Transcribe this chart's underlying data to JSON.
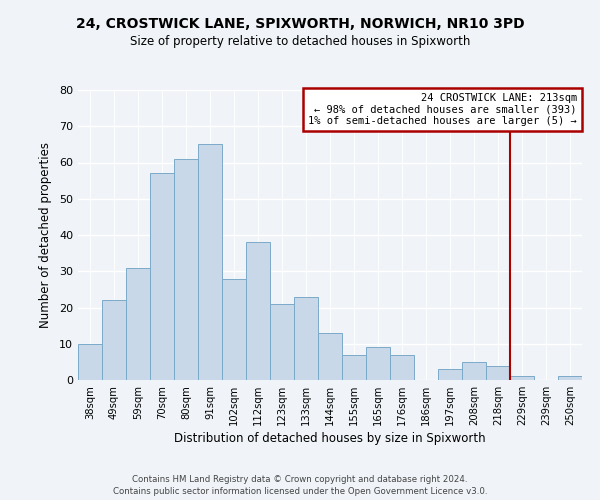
{
  "title": "24, CROSTWICK LANE, SPIXWORTH, NORWICH, NR10 3PD",
  "subtitle": "Size of property relative to detached houses in Spixworth",
  "xlabel": "Distribution of detached houses by size in Spixworth",
  "ylabel": "Number of detached properties",
  "bar_color": "#c8d8e8",
  "bar_edge_color": "#7aaac8",
  "background_color": "#f0f4f8",
  "bin_labels": [
    "38sqm",
    "49sqm",
    "59sqm",
    "70sqm",
    "80sqm",
    "91sqm",
    "102sqm",
    "112sqm",
    "123sqm",
    "133sqm",
    "144sqm",
    "155sqm",
    "165sqm",
    "176sqm",
    "186sqm",
    "197sqm",
    "208sqm",
    "218sqm",
    "229sqm",
    "239sqm",
    "250sqm"
  ],
  "bar_heights": [
    10,
    22,
    31,
    57,
    61,
    65,
    28,
    38,
    21,
    23,
    13,
    7,
    9,
    7,
    0,
    3,
    5,
    4,
    1,
    0,
    1
  ],
  "ylim": [
    0,
    80
  ],
  "yticks": [
    0,
    10,
    20,
    30,
    40,
    50,
    60,
    70,
    80
  ],
  "vline_x_index": 17.5,
  "vline_color": "#aa0000",
  "annotation_title": "24 CROSTWICK LANE: 213sqm",
  "annotation_line1": "← 98% of detached houses are smaller (393)",
  "annotation_line2": "1% of semi-detached houses are larger (5) →",
  "annotation_box_color": "#ffffff",
  "annotation_box_edge": "#aa0000",
  "footer_line1": "Contains HM Land Registry data © Crown copyright and database right 2024.",
  "footer_line2": "Contains public sector information licensed under the Open Government Licence v3.0."
}
